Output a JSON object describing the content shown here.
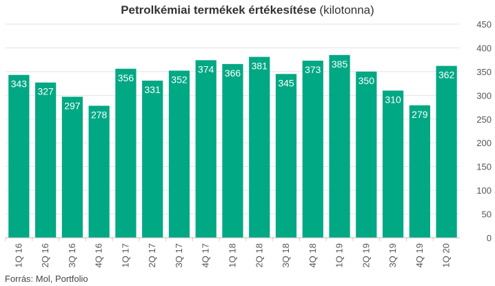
{
  "chart_data": {
    "type": "bar",
    "title_bold": "Petrolkémiai termékek értékesítése",
    "title_rest": " (kilotonna)",
    "categories": [
      "1Q 16",
      "2Q 16",
      "3Q 16",
      "4Q 16",
      "1Q 17",
      "2Q 17",
      "3Q 17",
      "4Q 17",
      "1Q 18",
      "2Q 18",
      "3Q 18",
      "4Q 18",
      "1Q 19",
      "2Q 19",
      "3Q 19",
      "4Q 19",
      "1Q 20"
    ],
    "values": [
      343,
      327,
      297,
      278,
      356,
      331,
      352,
      374,
      366,
      381,
      345,
      373,
      385,
      350,
      310,
      279,
      362
    ],
    "ylim": [
      0,
      450
    ],
    "yticks": [
      0,
      50,
      100,
      150,
      200,
      250,
      300,
      350,
      400,
      450
    ],
    "y_axis_side": "right",
    "grid": true,
    "bar_color": "#00a884",
    "grid_color": "#e3e3e3",
    "source": "Forrás: Mol, Portfolio"
  }
}
